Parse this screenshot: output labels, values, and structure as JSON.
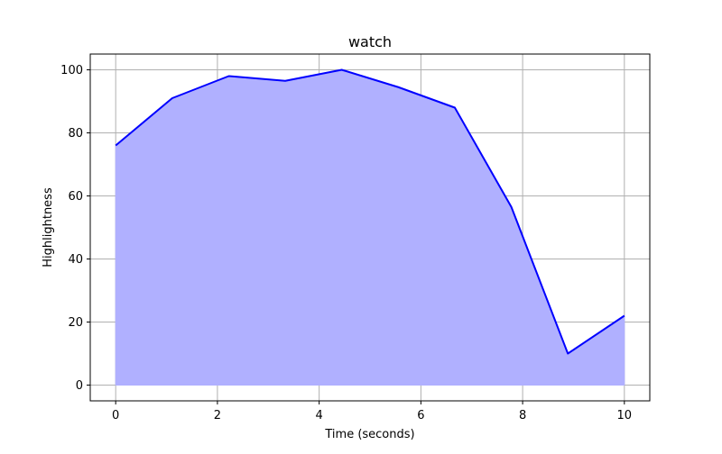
{
  "chart_data": {
    "type": "area",
    "title": "watch",
    "xlabel": "Time (seconds)",
    "ylabel": "Highlightness",
    "xlim": [
      -0.5,
      10.5
    ],
    "ylim": [
      -5,
      105
    ],
    "x_ticks": [
      0,
      2,
      4,
      6,
      8,
      10
    ],
    "y_ticks": [
      0,
      20,
      40,
      60,
      80,
      100
    ],
    "grid": true,
    "series": [
      {
        "name": "watch",
        "x": [
          0,
          1.111,
          2.222,
          3.333,
          4.444,
          5.556,
          6.667,
          7.778,
          8.889,
          10
        ],
        "values": [
          76,
          91,
          98,
          96.5,
          100,
          94.5,
          88,
          56.5,
          10,
          22
        ],
        "line_color": "#0000ff",
        "fill_color": "#b0b0ff"
      }
    ],
    "colors": {
      "grid": "#b0b0b0",
      "axis": "#000000"
    }
  }
}
